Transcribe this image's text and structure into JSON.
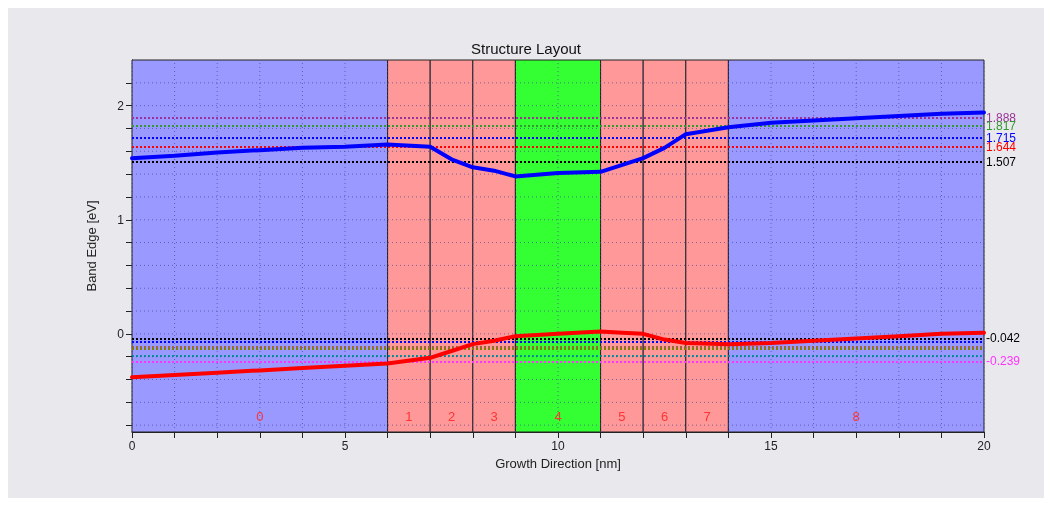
{
  "chart_data": {
    "type": "line",
    "title": "Structure Layout",
    "xlabel": "Growth Direction [nm]",
    "ylabel": "Band Edge [eV]",
    "xlim": [
      0,
      20
    ],
    "ylim": [
      -0.86,
      2.4
    ],
    "xticks": [
      0,
      {
        "value": 1,
        "label": null
      },
      {
        "value": 2,
        "label": null
      },
      {
        "value": 3,
        "label": null
      },
      {
        "value": 4,
        "label": null
      },
      5,
      {
        "value": 6,
        "label": null
      },
      {
        "value": 7,
        "label": null
      },
      {
        "value": 8,
        "label": null
      },
      {
        "value": 9,
        "label": null
      },
      10,
      {
        "value": 11,
        "label": null
      },
      {
        "value": 12,
        "label": null
      },
      {
        "value": 13,
        "label": null
      },
      {
        "value": 14,
        "label": null
      },
      15,
      {
        "value": 16,
        "label": null
      },
      {
        "value": 17,
        "label": null
      },
      {
        "value": 18,
        "label": null
      },
      {
        "value": 19,
        "label": null
      },
      20
    ],
    "yticks": [
      {
        "value": -0.8,
        "label": null
      },
      {
        "value": -0.6,
        "label": null
      },
      {
        "value": -0.4,
        "label": null
      },
      {
        "value": -0.2,
        "label": null
      },
      0,
      {
        "value": 0.2,
        "label": null
      },
      {
        "value": 0.4,
        "label": null
      },
      {
        "value": 0.6,
        "label": null
      },
      {
        "value": 0.8,
        "label": null
      },
      1,
      {
        "value": 1.2,
        "label": null
      },
      {
        "value": 1.4,
        "label": null
      },
      {
        "value": 1.6,
        "label": null
      },
      {
        "value": 1.8,
        "label": null
      },
      2,
      {
        "value": 2.2,
        "label": null
      }
    ],
    "grid": true,
    "marker": "none",
    "line_style": "solid",
    "series": [
      {
        "color": "#0000ff",
        "x": [
          0,
          1,
          2,
          3,
          4,
          5,
          6,
          7,
          7.5,
          8,
          8.5,
          9,
          10,
          11,
          12,
          12.5,
          13,
          14,
          15,
          16,
          17,
          18,
          19,
          20
        ],
        "values": [
          1.54,
          1.56,
          1.59,
          1.61,
          1.63,
          1.64,
          1.66,
          1.64,
          1.53,
          1.46,
          1.43,
          1.38,
          1.41,
          1.42,
          1.54,
          1.63,
          1.75,
          1.81,
          1.85,
          1.87,
          1.89,
          1.91,
          1.93,
          1.94
        ]
      },
      {
        "color": "#ff0000",
        "x": [
          0,
          1,
          2,
          3,
          4,
          5,
          6,
          7,
          7.5,
          8,
          8.5,
          9,
          10,
          11,
          11.5,
          12,
          12.5,
          13,
          14,
          15,
          16,
          17,
          18,
          19,
          20
        ],
        "values": [
          -0.38,
          -0.36,
          -0.34,
          -0.32,
          -0.3,
          -0.28,
          -0.26,
          -0.21,
          -0.15,
          -0.09,
          -0.06,
          -0.02,
          0,
          0.02,
          0.01,
          0,
          -0.05,
          -0.08,
          -0.09,
          -0.08,
          -0.06,
          -0.04,
          -0.02,
          0,
          0.01
        ]
      }
    ],
    "bands": [
      {
        "axis": "x",
        "from": 0,
        "to": 6,
        "label": "0",
        "color": "#9999ff"
      },
      {
        "axis": "x",
        "from": 6,
        "to": 7,
        "label": "1",
        "color": "#ff9999"
      },
      {
        "axis": "x",
        "from": 7,
        "to": 8,
        "label": "2",
        "color": "#ff9999"
      },
      {
        "axis": "x",
        "from": 8,
        "to": 9,
        "label": "3",
        "color": "#ff9999"
      },
      {
        "axis": "x",
        "from": 9,
        "to": 11,
        "label": "4",
        "color": "#33ff33"
      },
      {
        "axis": "x",
        "from": 11,
        "to": 12,
        "label": "5",
        "color": "#ff9999"
      },
      {
        "axis": "x",
        "from": 12,
        "to": 13,
        "label": "6",
        "color": "#ff9999"
      },
      {
        "axis": "x",
        "from": 13,
        "to": 14,
        "label": "7",
        "color": "#ff9999"
      },
      {
        "axis": "x",
        "from": 14,
        "to": 20,
        "label": "8",
        "color": "#9999ff"
      }
    ],
    "ref_lines": [
      {
        "axis": "y",
        "value": 1.888,
        "label": "1.888",
        "color": "#993399",
        "line_style": "dotted"
      },
      {
        "axis": "y",
        "value": 1.817,
        "label": "1.817",
        "color": "#339933",
        "line_style": "dotted"
      },
      {
        "axis": "y",
        "value": 1.715,
        "label": "1.715",
        "color": "#0000ff",
        "line_style": "dotted"
      },
      {
        "axis": "y",
        "value": 1.644,
        "label": "1.644",
        "color": "#ff0000",
        "line_style": "dotted"
      },
      {
        "axis": "y",
        "value": 1.507,
        "label": "1.507",
        "color": "#000000",
        "line_style": "dotted"
      },
      {
        "axis": "y",
        "value": -0.042,
        "label": "-0.042",
        "color": "#000000",
        "line_style": "dotted"
      },
      {
        "axis": "y",
        "value": -0.065,
        "label": null,
        "color": "#0000ff",
        "line_style": "dotted"
      },
      {
        "axis": "y",
        "value": -0.11,
        "label": null,
        "color": "#996633",
        "line_style": "dotted"
      },
      {
        "axis": "y",
        "value": -0.125,
        "label": null,
        "color": "#808000",
        "line_style": "dotted"
      },
      {
        "axis": "y",
        "value": -0.186,
        "label": null,
        "color": "#009999",
        "line_style": "dotted"
      },
      {
        "axis": "y",
        "value": -0.239,
        "label": "-0.239",
        "color": "#ff33ff",
        "line_style": "dotted"
      }
    ]
  }
}
